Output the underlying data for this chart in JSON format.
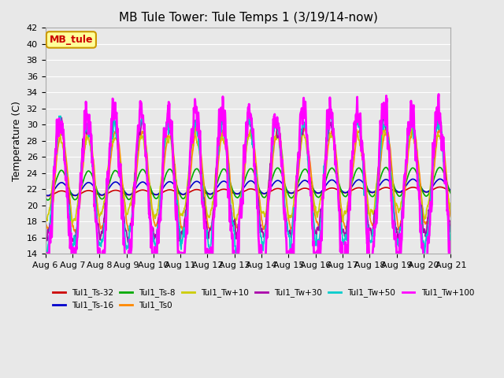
{
  "title": "MB Tule Tower: Tule Temps 1 (3/19/14-now)",
  "ylabel": "Temperature (C)",
  "ylim": [
    14,
    42
  ],
  "yticks": [
    14,
    16,
    18,
    20,
    22,
    24,
    26,
    28,
    30,
    32,
    34,
    36,
    38,
    40,
    42
  ],
  "xlabel_dates": [
    "Aug 6",
    "Aug 7",
    "Aug 8",
    "Aug 9",
    "Aug 10",
    "Aug 11",
    "Aug 12",
    "Aug 13",
    "Aug 14",
    "Aug 15",
    "Aug 16",
    "Aug 17",
    "Aug 18",
    "Aug 19",
    "Aug 20",
    "Aug 21"
  ],
  "background_color": "#e8e8e8",
  "plot_bg": "#e8e8e8",
  "grid_color": "#ffffff",
  "legend_label": "MB_tule",
  "legend_bg": "#ffff99",
  "legend_border": "#cc9900",
  "series": [
    {
      "label": "Tul1_Ts-32",
      "color": "#cc0000",
      "lw": 1.2
    },
    {
      "label": "Tul1_Ts-16",
      "color": "#0000cc",
      "lw": 1.2
    },
    {
      "label": "Tul1_Ts-8",
      "color": "#00aa00",
      "lw": 1.2
    },
    {
      "label": "Tul1_Ts0",
      "color": "#ff8800",
      "lw": 1.2
    },
    {
      "label": "Tul1_Tw+10",
      "color": "#cccc00",
      "lw": 1.2
    },
    {
      "label": "Tul1_Tw+30",
      "color": "#aa00aa",
      "lw": 1.2
    },
    {
      "label": "Tul1_Tw+50",
      "color": "#00cccc",
      "lw": 1.2
    },
    {
      "label": "Tul1_Tw+100",
      "color": "#ff00ff",
      "lw": 2.0
    }
  ],
  "n_days": 15,
  "title_fontsize": 11,
  "axis_fontsize": 9,
  "tick_fontsize": 8
}
